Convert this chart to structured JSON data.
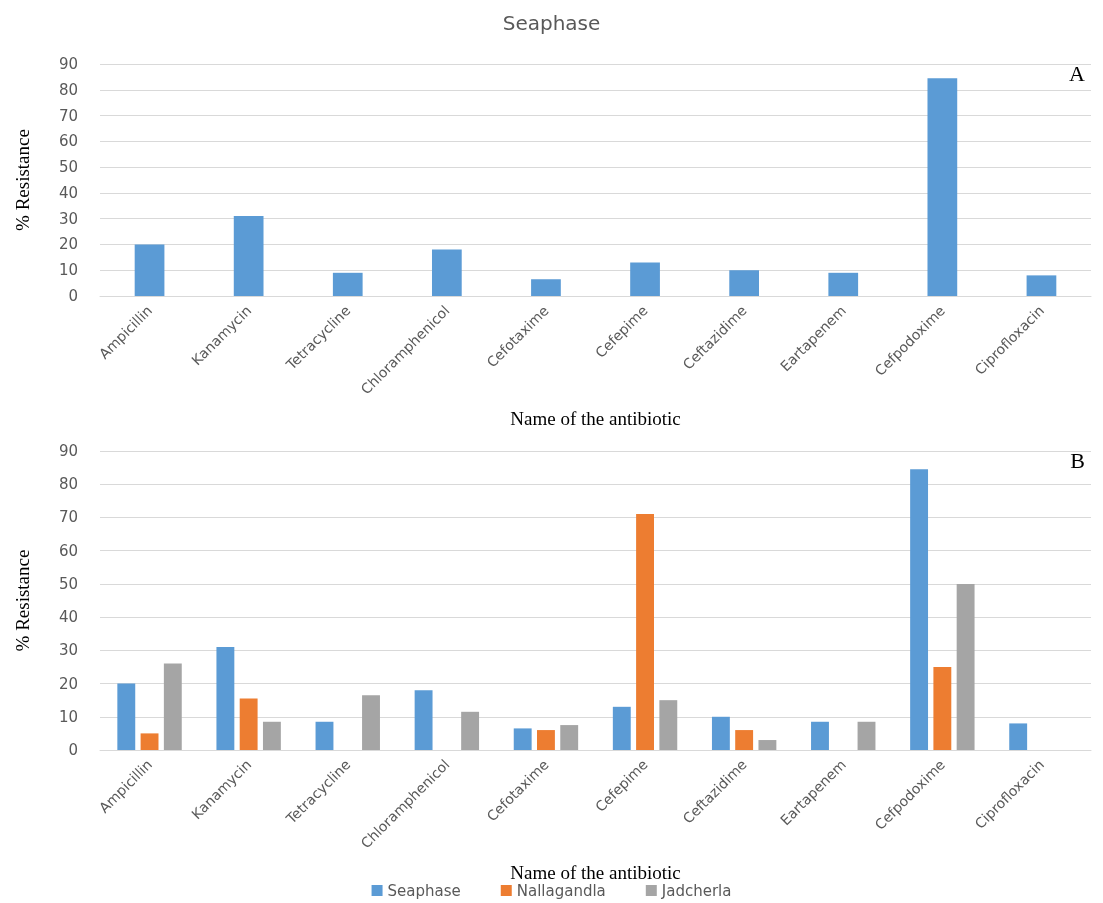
{
  "chart_data": [
    {
      "type": "bar",
      "title": "Seaphase",
      "xlabel": "Name of the antibiotic",
      "ylabel": "% Resistance",
      "annotations": [
        "A"
      ],
      "categories": [
        "Ampicillin",
        "Kanamycin",
        "Tetracycline",
        "Chloramphenicol",
        "Cefotaxime",
        "Cefepime",
        "Ceftazidime",
        "Eartapenem",
        "Cefpodoxime",
        "Ciprofloxacin"
      ],
      "series": [
        {
          "color": "#5b9bd5",
          "values": [
            20,
            31,
            9,
            18,
            6.5,
            13,
            10,
            9,
            84.5,
            8
          ]
        }
      ],
      "ylim": [
        0,
        90
      ],
      "yticks": [
        0,
        10,
        20,
        30,
        40,
        50,
        60,
        70,
        80,
        90
      ],
      "grid": "y",
      "legend": false
    },
    {
      "type": "bar",
      "xlabel": "Name of the antibiotic",
      "ylabel": "% Resistance",
      "annotations": [
        "B"
      ],
      "categories": [
        "Ampicillin",
        "Kanamycin",
        "Tetracycline",
        "Chloramphenicol",
        "Cefotaxime",
        "Cefepime",
        "Ceftazidime",
        "Eartapenem",
        "Cefpodoxime",
        "Ciprofloxacin"
      ],
      "series": [
        {
          "name": "Seaphase",
          "color": "#5b9bd5",
          "values": [
            20,
            31,
            8.5,
            18,
            6.5,
            13,
            10,
            8.5,
            84.5,
            8
          ]
        },
        {
          "name": "Nallagandla",
          "color": "#ed7d31",
          "values": [
            5,
            15.5,
            0,
            0,
            6,
            71,
            6,
            0,
            25,
            0
          ]
        },
        {
          "name": "Jadcherla",
          "color": "#a5a5a5",
          "values": [
            26,
            8.5,
            16.5,
            11.5,
            7.5,
            15,
            3,
            8.5,
            50,
            0
          ]
        }
      ],
      "ylim": [
        0,
        90
      ],
      "yticks": [
        0,
        10,
        20,
        30,
        40,
        50,
        60,
        70,
        80,
        90
      ],
      "grid": "y",
      "legend": "bottom"
    }
  ]
}
